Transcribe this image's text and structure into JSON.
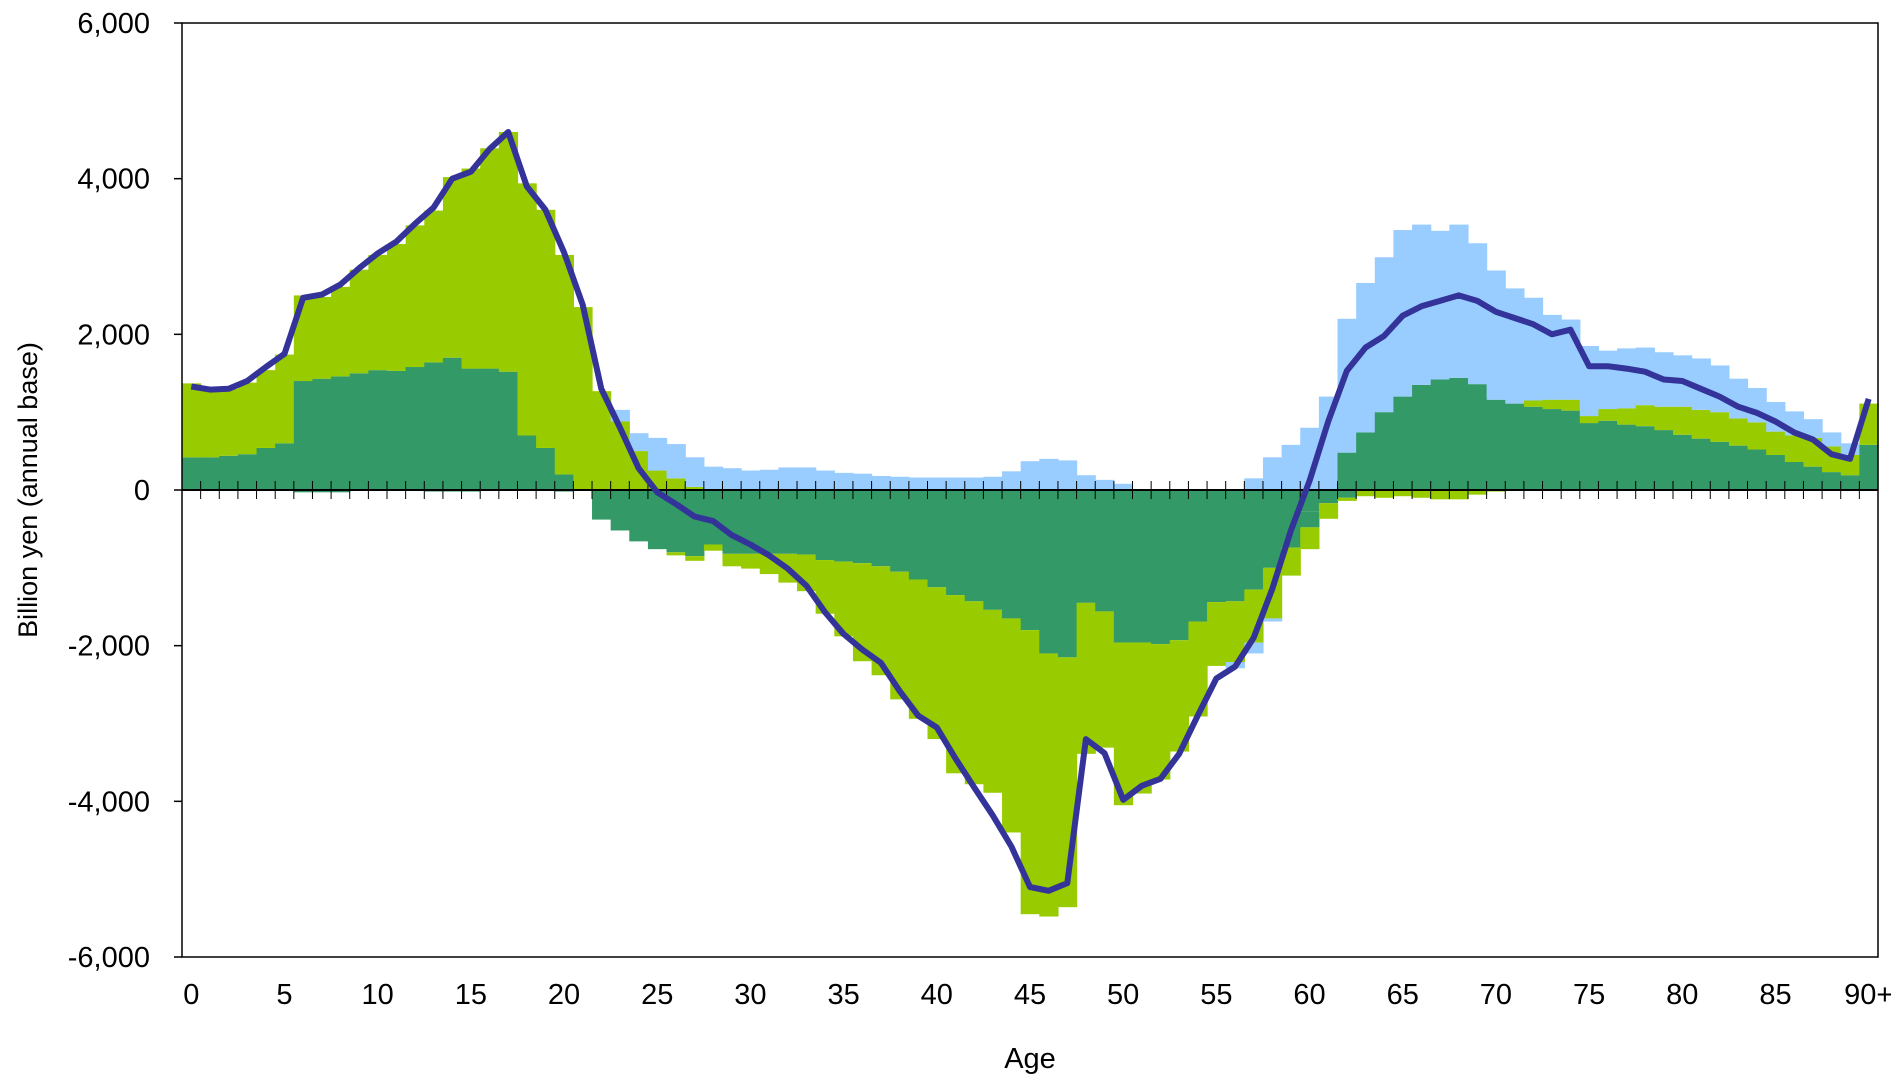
{
  "chart_data": {
    "type": "bar",
    "stacked": true,
    "xlabel": "Age",
    "ylabel": "Billion yen (annual base)",
    "ylim": [
      -6000,
      6000
    ],
    "yticks": [
      6000,
      4000,
      2000,
      0,
      -2000,
      -4000,
      -6000
    ],
    "ytick_labels": [
      "6,000",
      "4,000",
      "2,000",
      "0",
      "-2,000",
      "-4,000",
      "-6,000"
    ],
    "x_tick_labels": [
      "0",
      "5",
      "10",
      "15",
      "20",
      "25",
      "30",
      "35",
      "40",
      "45",
      "50",
      "55",
      "60",
      "65",
      "70",
      "75",
      "80",
      "85",
      "90+"
    ],
    "x_tick_ages": [
      0,
      5,
      10,
      15,
      20,
      25,
      30,
      35,
      40,
      45,
      50,
      55,
      60,
      65,
      70,
      75,
      80,
      85,
      90
    ],
    "ages": [
      0,
      1,
      2,
      3,
      4,
      5,
      6,
      7,
      8,
      9,
      10,
      11,
      12,
      13,
      14,
      15,
      16,
      17,
      18,
      19,
      20,
      21,
      22,
      23,
      24,
      25,
      26,
      27,
      28,
      29,
      30,
      31,
      32,
      33,
      34,
      35,
      36,
      37,
      38,
      39,
      40,
      41,
      42,
      43,
      44,
      45,
      46,
      47,
      48,
      49,
      50,
      51,
      52,
      53,
      54,
      55,
      56,
      57,
      58,
      59,
      60,
      61,
      62,
      63,
      64,
      65,
      66,
      67,
      68,
      69,
      70,
      71,
      72,
      73,
      74,
      75,
      76,
      77,
      78,
      79,
      80,
      81,
      82,
      83,
      84,
      85,
      86,
      87,
      88,
      89,
      90
    ],
    "colors": {
      "series1": "#339966",
      "series2": "#99CC00",
      "series3": "#99CCFF",
      "line": "#333399",
      "axis": "#000000"
    },
    "series": [
      {
        "values": [
          420,
          420,
          440,
          460,
          540,
          600,
          1400,
          1430,
          1460,
          1500,
          1540,
          1530,
          1580,
          1640,
          1700,
          1560,
          1560,
          1520,
          700,
          540,
          200,
          0,
          -380,
          -520,
          -660,
          -760,
          -800,
          -850,
          -700,
          -820,
          -820,
          -820,
          -820,
          -830,
          -900,
          -920,
          -940,
          -980,
          -1050,
          -1150,
          -1250,
          -1350,
          -1430,
          -1540,
          -1650,
          -1800,
          -2100,
          -2150,
          -1450,
          -1560,
          -1960,
          -1960,
          -1980,
          -1930,
          -1690,
          -1440,
          -1430,
          -1280,
          -1000,
          -740,
          -280,
          0,
          480,
          740,
          1000,
          1200,
          1350,
          1420,
          1440,
          1360,
          1160,
          1110,
          1070,
          1040,
          1020,
          860,
          890,
          840,
          820,
          770,
          710,
          660,
          620,
          570,
          520,
          450,
          360,
          300,
          230,
          190,
          580
        ],
        "negatives": [
          0,
          0,
          0,
          0,
          0,
          0,
          -30,
          -30,
          -30,
          0,
          0,
          0,
          0,
          -20,
          -20,
          -20,
          0,
          0,
          0,
          0,
          -20,
          0,
          0,
          0,
          0,
          0,
          0,
          0,
          0,
          0,
          0,
          0,
          0,
          0,
          0,
          0,
          0,
          0,
          0,
          0,
          0,
          0,
          0,
          0,
          0,
          0,
          0,
          0,
          0,
          0,
          0,
          0,
          0,
          0,
          0,
          0,
          0,
          0,
          0,
          0,
          -200,
          -170,
          -100,
          0,
          0,
          0,
          0,
          0,
          0,
          0,
          0,
          0,
          0,
          0,
          0,
          0,
          0,
          0,
          0,
          0,
          0,
          0,
          0,
          0,
          0,
          0,
          0,
          0,
          0,
          0,
          0
        ]
      },
      {
        "values": [
          950,
          880,
          860,
          920,
          1000,
          1140,
          1100,
          1050,
          1150,
          1330,
          1480,
          1630,
          1820,
          1950,
          2320,
          2570,
          2830,
          3080,
          3240,
          3060,
          2820,
          2350,
          1270,
          880,
          500,
          250,
          150,
          40,
          0,
          0,
          0,
          0,
          0,
          0,
          0,
          0,
          0,
          0,
          0,
          0,
          0,
          0,
          0,
          0,
          0,
          0,
          0,
          0,
          0,
          0,
          0,
          0,
          0,
          0,
          0,
          0,
          0,
          0,
          0,
          0,
          0,
          0,
          0,
          0,
          0,
          0,
          0,
          0,
          0,
          0,
          0,
          0,
          80,
          120,
          140,
          90,
          150,
          210,
          270,
          300,
          360,
          370,
          380,
          350,
          350,
          300,
          340,
          370,
          330,
          260,
          530
        ],
        "negatives": [
          0,
          0,
          0,
          0,
          0,
          0,
          0,
          0,
          0,
          0,
          0,
          0,
          0,
          0,
          0,
          0,
          0,
          0,
          0,
          0,
          0,
          0,
          0,
          0,
          0,
          0,
          -40,
          -60,
          -80,
          -160,
          -190,
          -260,
          -370,
          -470,
          -690,
          -960,
          -1260,
          -1400,
          -1640,
          -1790,
          -1950,
          -2290,
          -2350,
          -2350,
          -2750,
          -3650,
          -3380,
          -3210,
          -1940,
          -1750,
          -2090,
          -1940,
          -1740,
          -1430,
          -1220,
          -820,
          -780,
          -680,
          -650,
          -360,
          -280,
          -200,
          -40,
          -80,
          -100,
          -80,
          -100,
          -120,
          -120,
          -60,
          -20,
          0,
          0,
          0,
          0,
          0,
          0,
          0,
          0,
          0,
          0,
          0,
          0,
          0,
          0,
          0,
          0,
          0,
          0,
          0,
          0
        ]
      },
      {
        "values": [
          0,
          0,
          0,
          0,
          0,
          0,
          0,
          0,
          0,
          0,
          0,
          0,
          0,
          0,
          0,
          0,
          0,
          0,
          0,
          0,
          0,
          0,
          0,
          150,
          230,
          420,
          440,
          380,
          300,
          280,
          250,
          260,
          290,
          290,
          250,
          220,
          210,
          180,
          170,
          160,
          160,
          160,
          160,
          170,
          240,
          370,
          400,
          380,
          190,
          130,
          80,
          0,
          0,
          0,
          0,
          0,
          0,
          150,
          420,
          580,
          800,
          1200,
          1720,
          1920,
          1990,
          2140,
          2060,
          1910,
          1970,
          1810,
          1660,
          1480,
          1320,
          1090,
          1030,
          900,
          750,
          770,
          740,
          700,
          660,
          660,
          600,
          510,
          440,
          380,
          310,
          240,
          180,
          150,
          0
        ],
        "negatives": [
          0,
          0,
          0,
          0,
          0,
          0,
          0,
          0,
          0,
          0,
          0,
          0,
          0,
          0,
          0,
          0,
          0,
          0,
          0,
          0,
          0,
          0,
          0,
          0,
          0,
          0,
          0,
          0,
          0,
          0,
          0,
          0,
          0,
          0,
          0,
          0,
          0,
          0,
          0,
          0,
          0,
          0,
          0,
          0,
          0,
          0,
          0,
          0,
          0,
          0,
          0,
          0,
          0,
          0,
          0,
          0,
          -80,
          -140,
          -40,
          0,
          0,
          0,
          0,
          0,
          0,
          0,
          0,
          0,
          0,
          0,
          0,
          0,
          0,
          0,
          0,
          0,
          0,
          0,
          0,
          0,
          0,
          0,
          0,
          0,
          0,
          0,
          0,
          0,
          0,
          0,
          0
        ]
      }
    ],
    "line": {
      "values": [
        1330,
        1290,
        1300,
        1400,
        1580,
        1750,
        2470,
        2510,
        2640,
        2850,
        3040,
        3190,
        3420,
        3630,
        4000,
        4090,
        4380,
        4600,
        3900,
        3600,
        3050,
        2380,
        1300,
        800,
        280,
        -30,
        -180,
        -340,
        -400,
        -580,
        -700,
        -840,
        -1010,
        -1230,
        -1570,
        -1850,
        -2050,
        -2220,
        -2580,
        -2900,
        -3050,
        -3450,
        -3820,
        -4180,
        -4580,
        -5100,
        -5150,
        -5050,
        -3200,
        -3380,
        -3980,
        -3800,
        -3710,
        -3390,
        -2900,
        -2420,
        -2270,
        -1900,
        -1270,
        -520,
        120,
        880,
        1530,
        1830,
        1980,
        2240,
        2360,
        2430,
        2500,
        2430,
        2290,
        2210,
        2130,
        2000,
        2060,
        1590,
        1590,
        1560,
        1520,
        1420,
        1400,
        1300,
        1200,
        1070,
        990,
        880,
        740,
        650,
        460,
        400,
        1170
      ]
    }
  }
}
